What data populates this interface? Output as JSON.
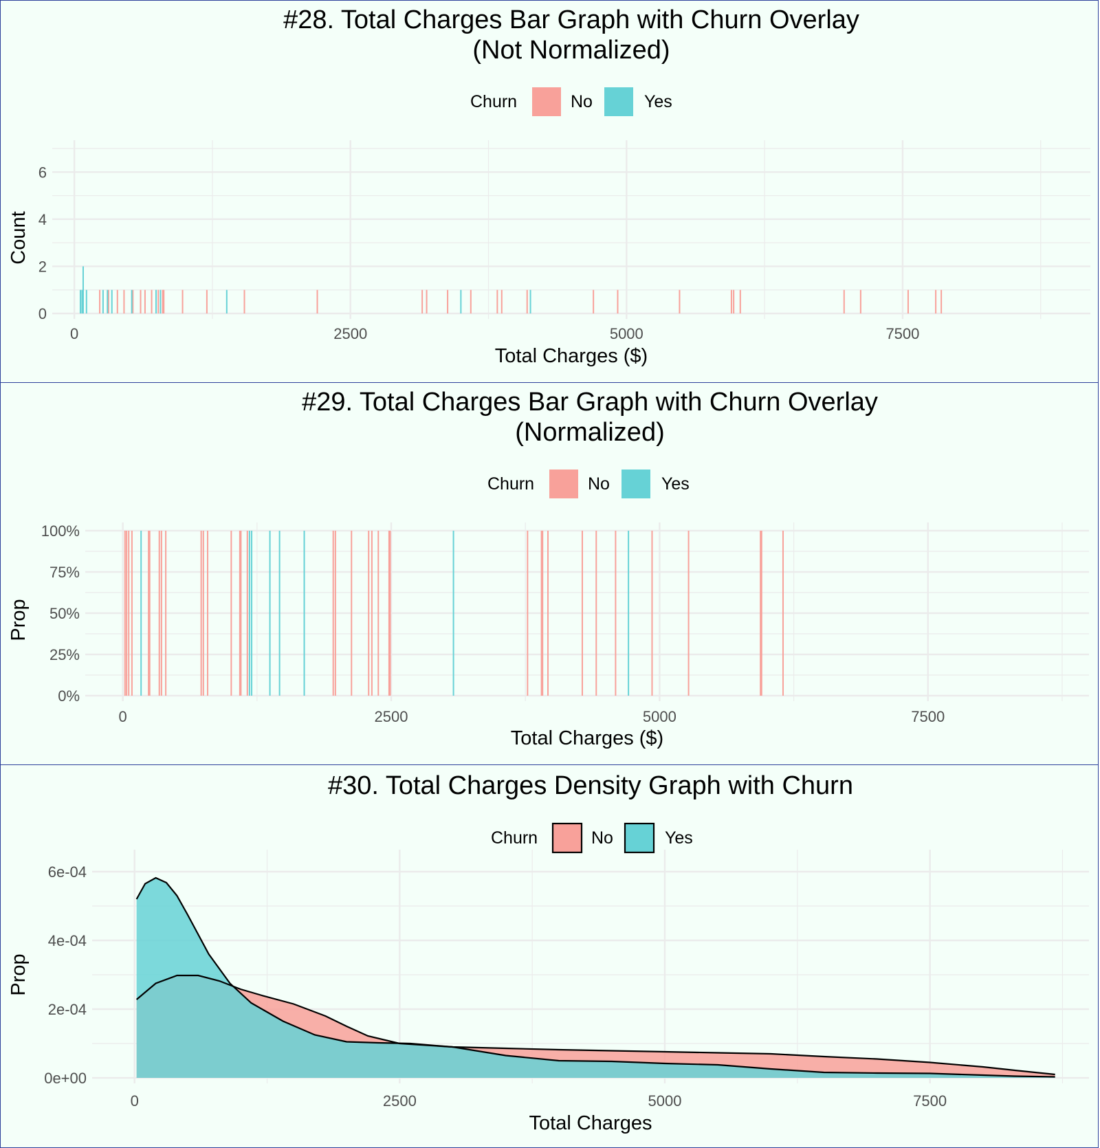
{
  "colors": {
    "panel_background": "#f4fff9",
    "panel_border": "#2b3f9a",
    "gridline": "#ebebeb",
    "text": "#000000",
    "tick_text": "#4d4d4d"
  },
  "chart_data": [
    {
      "type": "bar",
      "title_line1": "#28. Total Charges Bar Graph with Churn Overlay",
      "title_line2": "(Not Normalized)",
      "xlabel": "Total Charges ($)",
      "ylabel": "Count",
      "xlim": [
        -200,
        9200
      ],
      "ylim": [
        0,
        7
      ],
      "xticks": [
        0,
        2500,
        5000,
        7500
      ],
      "xtick_labels": [
        "0",
        "2500",
        "5000",
        "7500"
      ],
      "yticks": [
        0,
        2,
        4,
        6
      ],
      "ytick_labels": [
        "0",
        "2",
        "4",
        "6"
      ],
      "legend": {
        "title": "Churn",
        "position": "top",
        "items": [
          {
            "label": "No",
            "color": "#f8a19a"
          },
          {
            "label": "Yes",
            "color": "#66d2d6"
          }
        ]
      },
      "grid": true,
      "series": [
        {
          "name": "No",
          "color": "#f8a19a",
          "points": [
            [
              230,
              1
            ],
            [
              310,
              1
            ],
            [
              390,
              1
            ],
            [
              450,
              1
            ],
            [
              530,
              1
            ],
            [
              600,
              1
            ],
            [
              640,
              1
            ],
            [
              700,
              1
            ],
            [
              760,
              1
            ],
            [
              800,
              1
            ],
            [
              810,
              1
            ],
            [
              980,
              1
            ],
            [
              1200,
              1
            ],
            [
              1540,
              1
            ],
            [
              2200,
              1
            ],
            [
              3150,
              1
            ],
            [
              3190,
              1
            ],
            [
              3380,
              1
            ],
            [
              3590,
              1
            ],
            [
              3830,
              1
            ],
            [
              3870,
              1
            ],
            [
              4100,
              1
            ],
            [
              4700,
              1
            ],
            [
              4920,
              1
            ],
            [
              5480,
              1
            ],
            [
              5950,
              1
            ],
            [
              5970,
              1
            ],
            [
              6030,
              1
            ],
            [
              6970,
              1
            ],
            [
              7120,
              1
            ],
            [
              7550,
              1
            ],
            [
              7800,
              1
            ],
            [
              7850,
              1
            ]
          ]
        },
        {
          "name": "Yes",
          "color": "#66d2d6",
          "points": [
            [
              55,
              1
            ],
            [
              70,
              1
            ],
            [
              80,
              2
            ],
            [
              110,
              1
            ],
            [
              260,
              1
            ],
            [
              300,
              1
            ],
            [
              340,
              1
            ],
            [
              520,
              1
            ],
            [
              740,
              1
            ],
            [
              780,
              1
            ],
            [
              1380,
              1
            ],
            [
              3500,
              1
            ],
            [
              4130,
              1
            ]
          ]
        }
      ]
    },
    {
      "type": "bar",
      "title_line1": "#29. Total Charges Bar Graph with Churn Overlay",
      "title_line2": "(Normalized)",
      "xlabel": "Total Charges ($)",
      "ylabel": "Prop",
      "xlim": [
        -350,
        9000
      ],
      "ylim": [
        0,
        1
      ],
      "xticks": [
        0,
        2500,
        5000,
        7500
      ],
      "xtick_labels": [
        "0",
        "2500",
        "5000",
        "7500"
      ],
      "yticks": [
        0,
        0.25,
        0.5,
        0.75,
        1
      ],
      "ytick_labels": [
        "0%",
        "25%",
        "50%",
        "75%",
        "100%"
      ],
      "legend": {
        "title": "Churn",
        "position": "top",
        "items": [
          {
            "label": "No",
            "color": "#f8a19a"
          },
          {
            "label": "Yes",
            "color": "#66d2d6"
          }
        ]
      },
      "grid": true,
      "series": [
        {
          "name": "No",
          "color": "#f8a19a",
          "x": [
            20,
            35,
            55,
            85,
            240,
            250,
            340,
            360,
            400,
            730,
            750,
            790,
            1010,
            1090,
            1100,
            1160,
            1960,
            1980,
            2130,
            2290,
            2320,
            2380,
            2480,
            2490,
            3770,
            3900,
            3910,
            3960,
            4280,
            4410,
            4590,
            4930,
            5270,
            5940,
            5950,
            6150
          ],
          "values": [
            1,
            1,
            1,
            1,
            1,
            1,
            1,
            1,
            1,
            1,
            1,
            1,
            1,
            1,
            1,
            1,
            1,
            1,
            1,
            1,
            1,
            1,
            1,
            1,
            1,
            1,
            1,
            1,
            1,
            1,
            1,
            1,
            1,
            1,
            1,
            1
          ]
        },
        {
          "name": "Yes",
          "color": "#66d2d6",
          "x": [
            170,
            1180,
            1200,
            1370,
            1460,
            1690,
            3080,
            4710
          ],
          "values": [
            1,
            1,
            1,
            1,
            1,
            1,
            1,
            1
          ]
        }
      ]
    },
    {
      "type": "area",
      "title_line1": "#30. Total Charges Density Graph with Churn",
      "xlabel": "Total Charges",
      "ylabel": "Prop",
      "xlim": [
        -400,
        9000
      ],
      "ylim": [
        0,
        0.00064
      ],
      "xticks": [
        0,
        2500,
        5000,
        7500
      ],
      "xtick_labels": [
        "0",
        "2500",
        "5000",
        "7500"
      ],
      "yticks": [
        0,
        0.0002,
        0.0004,
        0.0006
      ],
      "ytick_labels": [
        "0e+00",
        "2e-04",
        "4e-04",
        "6e-04"
      ],
      "legend": {
        "title": "Churn",
        "position": "top",
        "items": [
          {
            "label": "No",
            "color": "#f8a19a"
          },
          {
            "label": "Yes",
            "color": "#66d2d6"
          }
        ]
      },
      "grid": true,
      "series": [
        {
          "name": "No",
          "color": "#f8a19a",
          "x": [
            19,
            200,
            400,
            600,
            800,
            1000,
            1200,
            1500,
            1800,
            2000,
            2200,
            2500,
            3000,
            3500,
            4000,
            4500,
            5000,
            5500,
            6000,
            6500,
            7000,
            7500,
            8000,
            8300,
            8680
          ],
          "y": [
            0.000228,
            0.000275,
            0.000298,
            0.000298,
            0.000282,
            0.000258,
            0.00024,
            0.000215,
            0.00018,
            0.00015,
            0.000122,
            0.0001,
            9e-05,
            8.6e-05,
            8.2e-05,
            7.9e-05,
            7.6e-05,
            7.3e-05,
            7e-05,
            6.2e-05,
            5.5e-05,
            4.5e-05,
            3.2e-05,
            2.2e-05,
            1e-05
          ]
        },
        {
          "name": "Yes",
          "color": "#66d2d6",
          "x": [
            19,
            100,
            200,
            300,
            400,
            500,
            700,
            900,
            1100,
            1400,
            1700,
            2000,
            2300,
            2600,
            3000,
            3500,
            4000,
            4500,
            5000,
            5500,
            6000,
            6500,
            7000,
            7500,
            8000,
            8300,
            8680
          ],
          "y": [
            0.00052,
            0.000565,
            0.000582,
            0.000568,
            0.00053,
            0.000475,
            0.00036,
            0.000275,
            0.000218,
            0.000165,
            0.000125,
            0.000105,
            0.000102,
            0.0001,
            9e-05,
            6.5e-05,
            5e-05,
            4.8e-05,
            4.2e-05,
            3.8e-05,
            2.6e-05,
            1.6e-05,
            1.4e-05,
            1.3e-05,
            8e-06,
            5e-06,
            3e-06
          ]
        }
      ]
    }
  ]
}
